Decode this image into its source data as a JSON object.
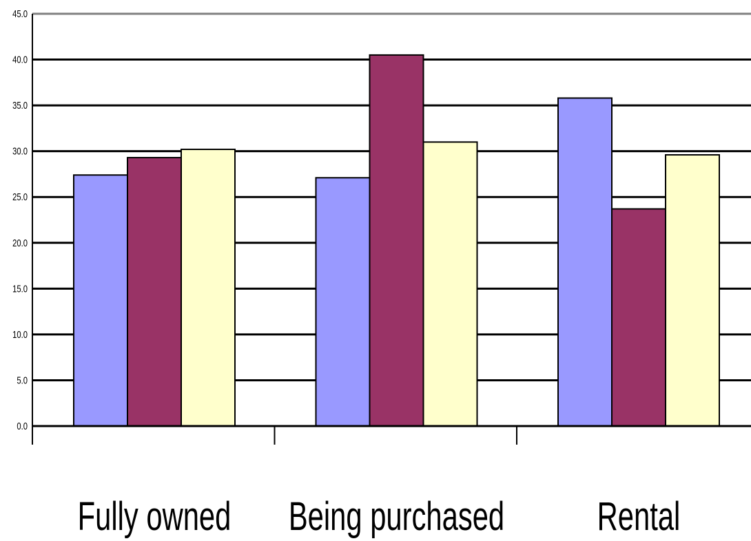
{
  "chart_data": {
    "type": "bar",
    "categories": [
      "Fully owned",
      "Being purchased",
      "Rental"
    ],
    "series": [
      {
        "values": [
          27.4,
          27.1,
          35.8
        ],
        "color": "#9999ff"
      },
      {
        "values": [
          29.3,
          40.5,
          23.7
        ],
        "color": "#993366"
      },
      {
        "values": [
          30.2,
          31.0,
          29.6
        ],
        "color": "#ffffcc"
      }
    ],
    "ylim": [
      0,
      45
    ],
    "yticks": [
      "0.0",
      "5.0",
      "10.0",
      "15.0",
      "20.0",
      "25.0",
      "30.0",
      "35.0",
      "40.0",
      "45.0"
    ],
    "grid": true,
    "legend": "none"
  }
}
